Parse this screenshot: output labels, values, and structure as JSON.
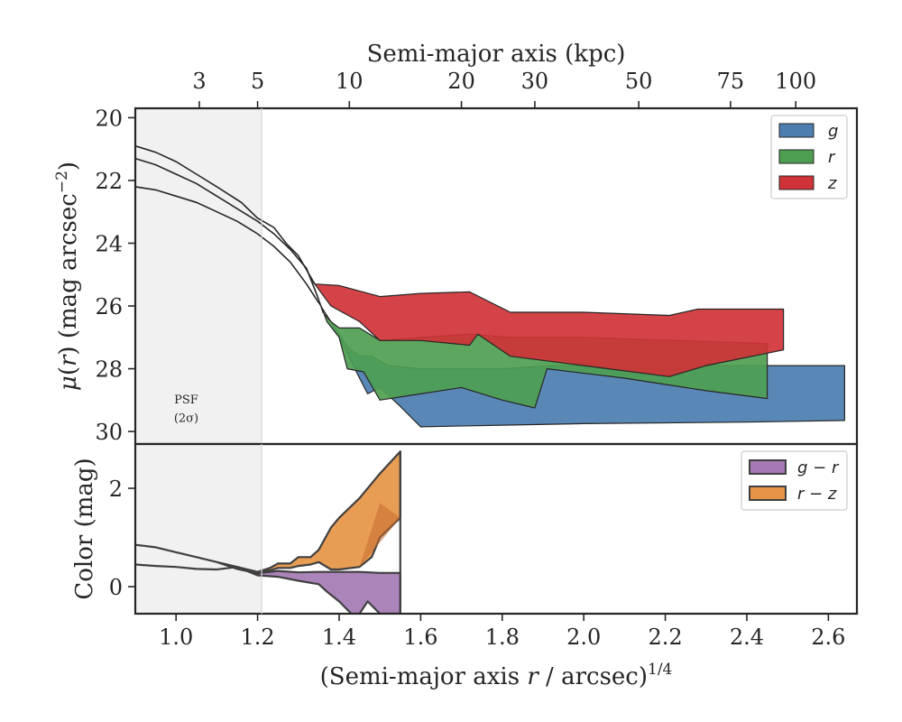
{
  "colors": {
    "g": "#4c7eb0",
    "r": "#4e9e52",
    "z": "#cf3337",
    "g_r": "#a479b4",
    "r_z": "#e69546",
    "psf_shade": "#ebebeb",
    "edge": "#262626"
  },
  "chart_data": [
    {
      "type": "area",
      "panel": "surface-brightness",
      "top_axis": {
        "label": "Semi-major axis (kpc)",
        "tick_labels": [
          "3",
          "5",
          "10",
          "20",
          "30",
          "50",
          "75",
          "100"
        ],
        "tick_positions_x": [
          1.057,
          1.2,
          1.425,
          1.7,
          1.88,
          2.135,
          2.36,
          2.52
        ]
      },
      "ylabel": "μ(r) (mag arcsec⁻²)",
      "ylim": [
        30.4,
        19.7
      ],
      "xlim": [
        0.9,
        2.67
      ],
      "yticks": [
        20,
        22,
        24,
        26,
        28,
        30
      ],
      "legend": [
        "g",
        "r",
        "z"
      ],
      "legend_position": "top-right",
      "psf_region": {
        "x_max": 1.21,
        "label_line1": "PSF",
        "label_line2": "(2σ)"
      },
      "series": [
        {
          "name": "g",
          "upper": [
            [
              1.35,
              25.9
            ],
            [
              1.38,
              26.5
            ],
            [
              1.42,
              27.3
            ],
            [
              1.45,
              27.6
            ],
            [
              1.48,
              27.6
            ],
            [
              1.52,
              27.9
            ],
            [
              1.6,
              28.0
            ],
            [
              1.7,
              28.0
            ],
            [
              1.8,
              28.0
            ],
            [
              1.92,
              27.9
            ],
            [
              2.2,
              27.9
            ],
            [
              2.45,
              27.9
            ],
            [
              2.64,
              27.9
            ]
          ],
          "lower": [
            [
              1.35,
              25.9
            ],
            [
              1.38,
              26.5
            ],
            [
              1.42,
              27.5
            ],
            [
              1.45,
              28.3
            ],
            [
              1.47,
              28.8
            ],
            [
              1.5,
              28.6
            ],
            [
              1.55,
              29.2
            ],
            [
              1.6,
              29.85
            ],
            [
              1.8,
              29.8
            ],
            [
              2.0,
              29.75
            ],
            [
              2.4,
              29.7
            ],
            [
              2.64,
              29.65
            ]
          ]
        },
        {
          "name": "r",
          "upper": [
            [
              1.35,
              25.8
            ],
            [
              1.36,
              26.2
            ],
            [
              1.38,
              26.5
            ],
            [
              1.4,
              26.7
            ],
            [
              1.45,
              26.7
            ],
            [
              1.5,
              27.1
            ],
            [
              1.6,
              27.0
            ],
            [
              1.72,
              26.9
            ],
            [
              1.82,
              27.0
            ],
            [
              2.0,
              27.0
            ],
            [
              2.45,
              27.2
            ]
          ],
          "lower": [
            [
              1.35,
              25.8
            ],
            [
              1.37,
              26.5
            ],
            [
              1.4,
              27.0
            ],
            [
              1.42,
              28.0
            ],
            [
              1.46,
              28.1
            ],
            [
              1.5,
              29.0
            ],
            [
              1.6,
              28.8
            ],
            [
              1.7,
              28.6
            ],
            [
              1.8,
              29.0
            ],
            [
              1.88,
              29.25
            ],
            [
              1.91,
              28.0
            ],
            [
              2.1,
              28.3
            ],
            [
              2.3,
              28.7
            ],
            [
              2.45,
              28.95
            ]
          ]
        },
        {
          "name": "z",
          "upper": [
            [
              1.34,
              25.3
            ],
            [
              1.4,
              25.35
            ],
            [
              1.5,
              25.7
            ],
            [
              1.6,
              25.6
            ],
            [
              1.72,
              25.55
            ],
            [
              1.82,
              26.2
            ],
            [
              2.0,
              26.2
            ],
            [
              2.21,
              26.3
            ],
            [
              2.28,
              26.1
            ],
            [
              2.49,
              26.1
            ]
          ],
          "lower": [
            [
              1.34,
              25.3
            ],
            [
              1.38,
              26.0
            ],
            [
              1.45,
              26.5
            ],
            [
              1.5,
              27.1
            ],
            [
              1.6,
              27.1
            ],
            [
              1.72,
              27.25
            ],
            [
              1.74,
              26.9
            ],
            [
              1.82,
              27.6
            ],
            [
              2.0,
              27.9
            ],
            [
              2.21,
              28.25
            ],
            [
              2.3,
              27.9
            ],
            [
              2.49,
              27.4
            ]
          ]
        }
      ],
      "inner_profiles": [
        [
          [
            0.9,
            20.9
          ],
          [
            0.95,
            21.1
          ],
          [
            1.0,
            21.4
          ],
          [
            1.05,
            21.8
          ],
          [
            1.1,
            22.2
          ],
          [
            1.16,
            22.7
          ],
          [
            1.2,
            23.2
          ],
          [
            1.24,
            23.5
          ],
          [
            1.27,
            24.0
          ],
          [
            1.3,
            24.4
          ],
          [
            1.34,
            25.3
          ]
        ],
        [
          [
            0.9,
            21.3
          ],
          [
            0.95,
            21.5
          ],
          [
            1.0,
            21.8
          ],
          [
            1.05,
            22.1
          ],
          [
            1.1,
            22.5
          ],
          [
            1.15,
            22.9
          ],
          [
            1.2,
            23.3
          ],
          [
            1.24,
            23.7
          ],
          [
            1.28,
            24.2
          ],
          [
            1.32,
            24.8
          ],
          [
            1.35,
            25.8
          ]
        ],
        [
          [
            0.9,
            22.2
          ],
          [
            0.95,
            22.3
          ],
          [
            1.0,
            22.5
          ],
          [
            1.05,
            22.7
          ],
          [
            1.1,
            23.0
          ],
          [
            1.15,
            23.3
          ],
          [
            1.2,
            23.7
          ],
          [
            1.24,
            24.1
          ],
          [
            1.28,
            24.6
          ],
          [
            1.32,
            25.3
          ],
          [
            1.35,
            25.9
          ]
        ]
      ]
    },
    {
      "type": "area",
      "panel": "color",
      "xlabel": "(Semi-major axis r / arcsec)¹⁄⁴",
      "ylabel": "Color (mag)",
      "xlim": [
        0.9,
        2.67
      ],
      "ylim": [
        -0.55,
        2.9
      ],
      "yticks": [
        0,
        2
      ],
      "xticks": [
        "1.0",
        "1.2",
        "1.4",
        "1.6",
        "1.8",
        "2.0",
        "2.2",
        "2.4",
        "2.6"
      ],
      "legend": [
        "g − r",
        "r − z"
      ],
      "legend_position": "top-right",
      "series": [
        {
          "name": "g − r",
          "upper": [
            [
              0.9,
              0.45
            ],
            [
              0.95,
              0.42
            ],
            [
              1.0,
              0.4
            ],
            [
              1.05,
              0.36
            ],
            [
              1.1,
              0.35
            ],
            [
              1.15,
              0.4
            ],
            [
              1.2,
              0.27
            ],
            [
              1.25,
              0.32
            ],
            [
              1.3,
              0.29
            ],
            [
              1.35,
              0.3
            ],
            [
              1.4,
              0.3
            ],
            [
              1.45,
              0.3
            ],
            [
              1.5,
              0.28
            ],
            [
              1.55,
              0.28
            ]
          ],
          "lower": [
            [
              0.9,
              0.45
            ],
            [
              0.95,
              0.42
            ],
            [
              1.0,
              0.4
            ],
            [
              1.05,
              0.36
            ],
            [
              1.1,
              0.35
            ],
            [
              1.15,
              0.4
            ],
            [
              1.2,
              0.23
            ],
            [
              1.25,
              0.2
            ],
            [
              1.3,
              0.12
            ],
            [
              1.35,
              0.05
            ],
            [
              1.37,
              -0.1
            ],
            [
              1.4,
              -0.3
            ],
            [
              1.43,
              -0.55
            ],
            [
              1.45,
              -0.55
            ],
            [
              1.47,
              -0.3
            ],
            [
              1.5,
              -0.55
            ],
            [
              1.55,
              -0.55
            ]
          ]
        },
        {
          "name": "r − z",
          "upper": [
            [
              0.9,
              0.85
            ],
            [
              0.95,
              0.8
            ],
            [
              1.0,
              0.7
            ],
            [
              1.05,
              0.6
            ],
            [
              1.1,
              0.5
            ],
            [
              1.15,
              0.4
            ],
            [
              1.2,
              0.3
            ],
            [
              1.23,
              0.38
            ],
            [
              1.25,
              0.47
            ],
            [
              1.28,
              0.47
            ],
            [
              1.3,
              0.6
            ],
            [
              1.33,
              0.6
            ],
            [
              1.35,
              0.75
            ],
            [
              1.38,
              1.2
            ],
            [
              1.4,
              1.4
            ],
            [
              1.45,
              1.8
            ],
            [
              1.5,
              2.3
            ],
            [
              1.55,
              2.75
            ]
          ],
          "lower": [
            [
              0.9,
              0.85
            ],
            [
              0.95,
              0.8
            ],
            [
              1.0,
              0.7
            ],
            [
              1.05,
              0.6
            ],
            [
              1.1,
              0.5
            ],
            [
              1.15,
              0.36
            ],
            [
              1.2,
              0.27
            ],
            [
              1.23,
              0.33
            ],
            [
              1.25,
              0.38
            ],
            [
              1.28,
              0.38
            ],
            [
              1.3,
              0.42
            ],
            [
              1.33,
              0.45
            ],
            [
              1.35,
              0.5
            ],
            [
              1.38,
              0.35
            ],
            [
              1.4,
              0.35
            ],
            [
              1.45,
              0.4
            ],
            [
              1.48,
              0.6
            ],
            [
              1.5,
              1.0
            ],
            [
              1.55,
              1.4
            ]
          ]
        }
      ],
      "overlay_rz_inner": [
        [
          1.45,
          0.4
        ],
        [
          1.5,
          1.7
        ],
        [
          1.55,
          1.4
        ]
      ]
    }
  ]
}
